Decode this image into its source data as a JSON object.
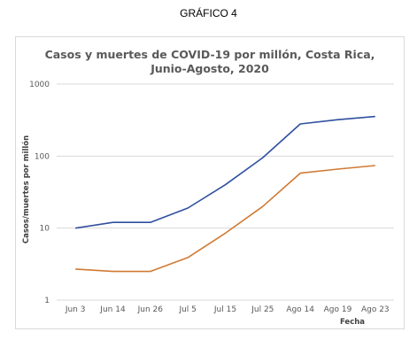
{
  "caption": "GRÁFICO 4",
  "chart_data": {
    "type": "line",
    "title_lines": [
      "Casos y muertes de COVID-19 por millón, Costa Rica,",
      "Junio-Agosto, 2020"
    ],
    "xlabel": "Fecha",
    "ylabel": "Casos/muertes por millón",
    "yscale": "log",
    "ylim": [
      1,
      1000
    ],
    "yticks": [
      "1",
      "10",
      "100",
      "1000"
    ],
    "grid": true,
    "legend": "none",
    "categories": [
      "Jun 3",
      "Jun 14",
      "Jun 26",
      "Jul 5",
      "Jul 15",
      "Jul 25",
      "Ago 14",
      "Ago 19",
      "Ago 23"
    ],
    "series": [
      {
        "color": "#2f4f9f",
        "values": [
          10,
          12,
          12,
          19,
          40,
          95,
          280,
          320,
          355
        ]
      },
      {
        "color": "#d07a34",
        "values": [
          2.7,
          2.5,
          2.5,
          3.9,
          8.5,
          20,
          58,
          66,
          74
        ]
      }
    ]
  }
}
